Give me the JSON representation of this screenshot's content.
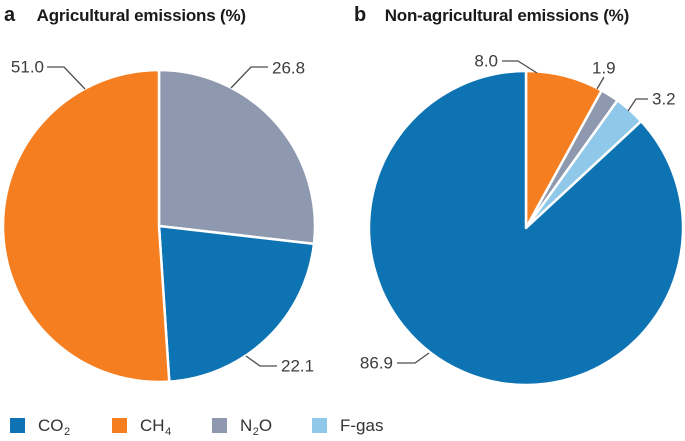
{
  "figure": {
    "panels": [
      {
        "id": "a",
        "label": "a",
        "title": "Agricultural emissions (%)"
      },
      {
        "id": "b",
        "label": "b",
        "title": "Non-agricultural emissions (%)"
      }
    ]
  },
  "colors": {
    "co2": "#0E73B2",
    "ch4": "#F57E20",
    "n2o": "#8E99AF",
    "fgas": "#8FC8E9",
    "leader_line": "#4D4D4D",
    "label_text": "#3C3C3C"
  },
  "legend": {
    "items": [
      {
        "gas": "co2",
        "pre": "CO",
        "sub": "2",
        "post": ""
      },
      {
        "gas": "ch4",
        "pre": "CH",
        "sub": "4",
        "post": ""
      },
      {
        "gas": "n2o",
        "pre": "N",
        "sub": "2",
        "post": "O"
      },
      {
        "gas": "fgas",
        "pre": "F-gas",
        "sub": "",
        "post": ""
      }
    ]
  },
  "chart_data": [
    {
      "type": "pie",
      "panel": "a",
      "title": "Agricultural emissions (%)",
      "unit": "%",
      "start_angle_deg": 0,
      "direction": "clockwise",
      "slices": [
        {
          "name": "N2O",
          "gas": "n2o",
          "value": 26.8,
          "label": "26.8"
        },
        {
          "name": "CO2",
          "gas": "co2",
          "value": 22.1,
          "label": "22.1"
        },
        {
          "name": "CH4",
          "gas": "ch4",
          "value": 51.0,
          "label": "51.0"
        }
      ]
    },
    {
      "type": "pie",
      "panel": "b",
      "title": "Non-agricultural emissions (%)",
      "unit": "%",
      "start_angle_deg": 0,
      "direction": "clockwise",
      "slices": [
        {
          "name": "CH4",
          "gas": "ch4",
          "value": 8.0,
          "label": "8.0"
        },
        {
          "name": "N2O",
          "gas": "n2o",
          "value": 1.9,
          "label": "1.9"
        },
        {
          "name": "F-gas",
          "gas": "fgas",
          "value": 3.2,
          "label": "3.2"
        },
        {
          "name": "CO2",
          "gas": "co2",
          "value": 86.9,
          "label": "86.9"
        }
      ]
    }
  ]
}
